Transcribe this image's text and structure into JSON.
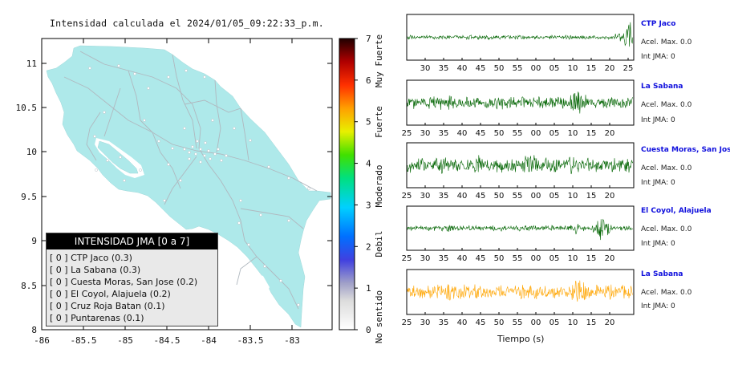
{
  "map": {
    "title": "Intensidad calculada el 2024/01/05_09:22:33_p.m.",
    "x_ticks": [
      "-86",
      "-85.5",
      "-85",
      "-84.5",
      "-84",
      "-83.5",
      "-83"
    ],
    "y_ticks": [
      "11",
      "10.5",
      "10",
      "9.5",
      "9",
      "8.5",
      "8"
    ],
    "land_color": "#aee9ea",
    "road_color": "#b0b8bf"
  },
  "colorbar": {
    "ticks": [
      "0",
      "1",
      "2",
      "3",
      "4",
      "5",
      "6",
      "7"
    ],
    "labels": [
      "No sentido",
      "Debil",
      "Moderado",
      "Fuerte",
      "Muy Fuerte"
    ]
  },
  "legend": {
    "title": "INTENSIDAD JMA [0 a 7]",
    "items": [
      {
        "text": "[ 0 ]  CTP Jaco (0.3)"
      },
      {
        "text": "[ 0 ]  La Sabana (0.3)"
      },
      {
        "text": "[ 0 ]  Cuesta Moras, San Jose (0.2)"
      },
      {
        "text": "[ 0 ]  El Coyol, Alajuela (0.2)"
      },
      {
        "text": "[ 0 ]  Cruz Roja Batan (0.1)"
      },
      {
        "text": "[ 0 ]  Puntarenas (0.1)"
      }
    ]
  },
  "waveforms": {
    "time_label": "Tiempo (s)",
    "tick_labels_first": [
      "30",
      "35",
      "40",
      "45",
      "50",
      "55",
      "00",
      "05",
      "10",
      "15",
      "20",
      "25"
    ],
    "tick_labels": [
      "25",
      "30",
      "35",
      "40",
      "45",
      "50",
      "55",
      "00",
      "05",
      "10",
      "15",
      "20"
    ],
    "panels": [
      {
        "name": "CTP Jaco",
        "acel": "Acel. Max. 0.0",
        "int": "Int JMA: 0",
        "color": "#006400"
      },
      {
        "name": "La Sabana",
        "acel": "Acel. Max. 0.0",
        "int": "Int JMA: 0",
        "color": "#006400"
      },
      {
        "name": "Cuesta Moras, San Jose",
        "acel": "Acel. Max. 0.0",
        "int": "Int JMA: 0",
        "color": "#006400"
      },
      {
        "name": "El Coyol, Alajuela",
        "acel": "Acel. Max. 0.0",
        "int": "Int JMA: 0",
        "color": "#006400"
      },
      {
        "name": "La Sabana",
        "acel": "Acel. Max. 0.0",
        "int": "Int JMA: 0",
        "color": "#ffa500"
      }
    ]
  }
}
